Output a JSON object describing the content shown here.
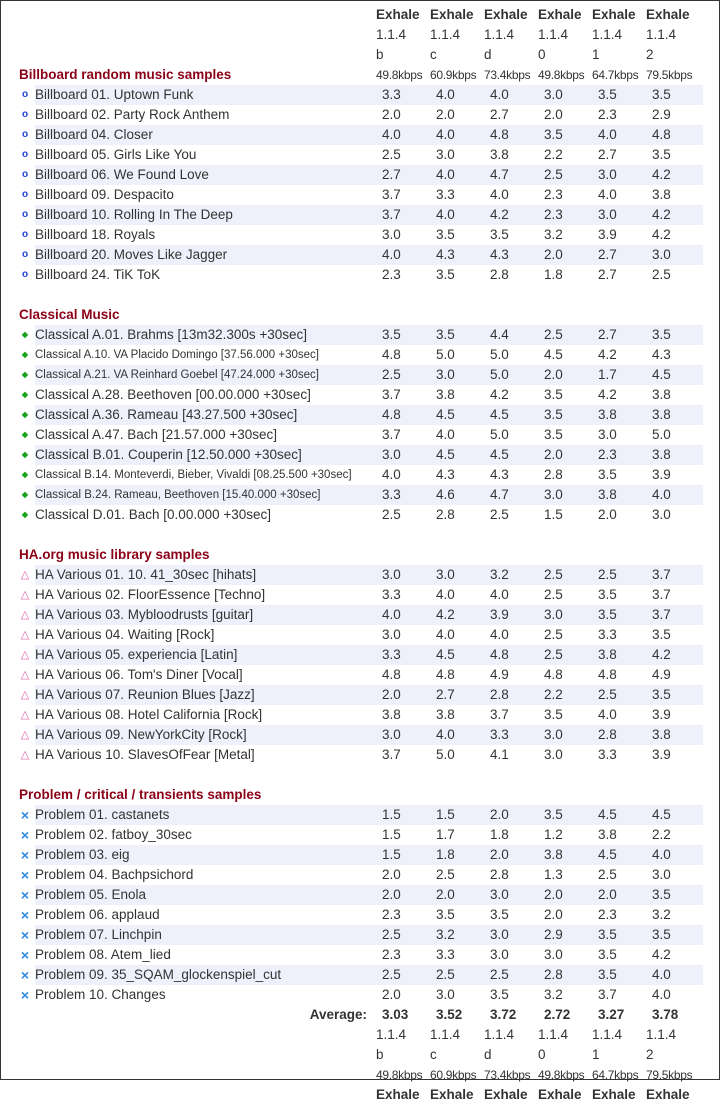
{
  "columns": [
    {
      "codec": "Exhale",
      "version": "1.1.4",
      "preset": "b",
      "bitrate": "49.8kbps"
    },
    {
      "codec": "Exhale",
      "version": "1.1.4",
      "preset": "c",
      "bitrate": "60.9kbps"
    },
    {
      "codec": "Exhale",
      "version": "1.1.4",
      "preset": "d",
      "bitrate": "73.4kbps"
    },
    {
      "codec": "Exhale",
      "version": "1.1.4",
      "preset": "0",
      "bitrate": "49.8kbps"
    },
    {
      "codec": "Exhale",
      "version": "1.1.4",
      "preset": "1",
      "bitrate": "64.7kbps"
    },
    {
      "codec": "Exhale",
      "version": "1.1.4",
      "preset": "2",
      "bitrate": "79.5kbps"
    }
  ],
  "sections": [
    {
      "title": "Billboard random music samples",
      "icon": "circle-icon",
      "glyph": "o",
      "color": "#1a3fd6",
      "rows": [
        {
          "label": "Billboard 01. Uptown Funk",
          "values": [
            "3.3",
            "4.0",
            "4.0",
            "3.0",
            "3.5",
            "3.5"
          ]
        },
        {
          "label": "Billboard 02. Party Rock Anthem",
          "values": [
            "2.0",
            "2.0",
            "2.7",
            "2.0",
            "2.3",
            "2.9"
          ]
        },
        {
          "label": "Billboard 04. Closer",
          "values": [
            "4.0",
            "4.0",
            "4.8",
            "3.5",
            "4.0",
            "4.8"
          ]
        },
        {
          "label": "Billboard 05. Girls Like You",
          "values": [
            "2.5",
            "3.0",
            "3.8",
            "2.2",
            "2.7",
            "3.5"
          ]
        },
        {
          "label": "Billboard 06. We Found Love",
          "values": [
            "2.7",
            "4.0",
            "4.7",
            "2.5",
            "3.0",
            "4.2"
          ]
        },
        {
          "label": "Billboard 09. Despacito",
          "values": [
            "3.7",
            "3.3",
            "4.0",
            "2.3",
            "4.0",
            "3.8"
          ]
        },
        {
          "label": "Billboard 10. Rolling In The Deep",
          "values": [
            "3.7",
            "4.0",
            "4.2",
            "2.3",
            "3.0",
            "4.2"
          ]
        },
        {
          "label": "Billboard 18. Royals",
          "values": [
            "3.0",
            "3.5",
            "3.5",
            "3.2",
            "3.9",
            "4.2"
          ]
        },
        {
          "label": "Billboard 20. Moves Like Jagger",
          "values": [
            "4.0",
            "4.3",
            "4.3",
            "2.0",
            "2.7",
            "3.0"
          ]
        },
        {
          "label": "Billboard 24. TiK ToK",
          "values": [
            "2.3",
            "3.5",
            "2.8",
            "1.8",
            "2.7",
            "2.5"
          ]
        }
      ]
    },
    {
      "title": "Classical Music",
      "icon": "diamond-icon",
      "glyph": "◆",
      "color": "#1aa31a",
      "rows": [
        {
          "label": "Classical A.01. Brahms [13m32.300s +30sec]",
          "values": [
            "3.5",
            "3.5",
            "4.4",
            "2.5",
            "2.7",
            "3.5"
          ]
        },
        {
          "label": "Classical A.10. VA Placido Domingo [37.56.000 +30sec]",
          "values": [
            "4.8",
            "5.0",
            "5.0",
            "4.5",
            "4.2",
            "4.3"
          ]
        },
        {
          "label": "Classical A.21. VA Reinhard Goebel [47.24.000 +30sec]",
          "values": [
            "2.5",
            "3.0",
            "5.0",
            "2.0",
            "1.7",
            "4.5"
          ]
        },
        {
          "label": "Classical A.28. Beethoven [00.00.000 +30sec]",
          "values": [
            "3.7",
            "3.8",
            "4.2",
            "3.5",
            "4.2",
            "3.8"
          ]
        },
        {
          "label": "Classical A.36. Rameau [43.27.500 +30sec]",
          "values": [
            "4.8",
            "4.5",
            "4.5",
            "3.5",
            "3.8",
            "3.8"
          ]
        },
        {
          "label": "Classical A.47. Bach [21.57.000 +30sec]",
          "values": [
            "3.7",
            "4.0",
            "5.0",
            "3.5",
            "3.0",
            "5.0"
          ]
        },
        {
          "label": "Classical B.01. Couperin [12.50.000 +30sec]",
          "values": [
            "3.0",
            "4.5",
            "4.5",
            "2.0",
            "2.3",
            "3.8"
          ]
        },
        {
          "label": "Classical B.14. Monteverdi, Bieber, Vivaldi [08.25.500 +30sec]",
          "values": [
            "4.0",
            "4.3",
            "4.3",
            "2.8",
            "3.5",
            "3.9"
          ]
        },
        {
          "label": "Classical B.24. Rameau, Beethoven [15.40.000 +30sec]",
          "values": [
            "3.3",
            "4.6",
            "4.7",
            "3.0",
            "3.8",
            "4.0"
          ]
        },
        {
          "label": "Classical D.01. Bach [0.00.000 +30sec]",
          "values": [
            "2.5",
            "2.8",
            "2.5",
            "1.5",
            "2.0",
            "3.0"
          ]
        }
      ]
    },
    {
      "title": "HA.org music library samples",
      "icon": "triangle-icon",
      "glyph": "△",
      "color": "#e060b0",
      "rows": [
        {
          "label": "HA Various 01. 10. 41_30sec [hihats]",
          "values": [
            "3.0",
            "3.0",
            "3.2",
            "2.5",
            "2.5",
            "3.7"
          ]
        },
        {
          "label": "HA Various 02. FloorEssence [Techno]",
          "values": [
            "3.3",
            "4.0",
            "4.0",
            "2.5",
            "3.5",
            "3.7"
          ]
        },
        {
          "label": "HA Various 03. Mybloodrusts [guitar]",
          "values": [
            "4.0",
            "4.2",
            "3.9",
            "3.0",
            "3.5",
            "3.7"
          ]
        },
        {
          "label": "HA Various 04. Waiting [Rock]",
          "values": [
            "3.0",
            "4.0",
            "4.0",
            "2.5",
            "3.3",
            "3.5"
          ]
        },
        {
          "label": "HA Various 05. experiencia [Latin]",
          "values": [
            "3.3",
            "4.5",
            "4.8",
            "2.5",
            "3.8",
            "4.2"
          ]
        },
        {
          "label": "HA Various 06. Tom's Diner [Vocal]",
          "values": [
            "4.8",
            "4.8",
            "4.9",
            "4.8",
            "4.8",
            "4.9"
          ]
        },
        {
          "label": "HA Various 07. Reunion Blues [Jazz]",
          "values": [
            "2.0",
            "2.7",
            "2.8",
            "2.2",
            "2.5",
            "3.5"
          ]
        },
        {
          "label": "HA Various 08. Hotel California [Rock]",
          "values": [
            "3.8",
            "3.8",
            "3.7",
            "3.5",
            "4.0",
            "3.9"
          ]
        },
        {
          "label": "HA Various 09. NewYorkCity [Rock]",
          "values": [
            "3.0",
            "4.0",
            "3.3",
            "3.0",
            "2.8",
            "3.8"
          ]
        },
        {
          "label": "HA Various 10. SlavesOfFear [Metal]",
          "values": [
            "3.7",
            "5.0",
            "4.1",
            "3.0",
            "3.3",
            "3.9"
          ]
        }
      ]
    },
    {
      "title": "Problem / critical / transients samples",
      "icon": "cross-icon",
      "glyph": "×",
      "color": "#2a8ae0",
      "rows": [
        {
          "label": "Problem 01. castanets",
          "values": [
            "1.5",
            "1.5",
            "2.0",
            "3.5",
            "4.5",
            "4.5"
          ]
        },
        {
          "label": "Problem 02. fatboy_30sec",
          "values": [
            "1.5",
            "1.7",
            "1.8",
            "1.2",
            "3.8",
            "2.2"
          ]
        },
        {
          "label": "Problem 03. eig",
          "values": [
            "1.5",
            "1.8",
            "2.0",
            "3.8",
            "4.5",
            "4.0"
          ]
        },
        {
          "label": "Problem 04. Bachpsichord",
          "values": [
            "2.0",
            "2.5",
            "2.8",
            "1.3",
            "2.5",
            "3.0"
          ]
        },
        {
          "label": "Problem 05. Enola",
          "values": [
            "2.0",
            "2.0",
            "3.0",
            "2.0",
            "2.0",
            "3.5"
          ]
        },
        {
          "label": "Problem 06. applaud",
          "values": [
            "2.3",
            "3.5",
            "3.5",
            "2.0",
            "2.3",
            "3.2"
          ]
        },
        {
          "label": "Problem 07. Linchpin",
          "values": [
            "2.5",
            "3.2",
            "3.0",
            "2.9",
            "3.5",
            "3.5"
          ]
        },
        {
          "label": "Problem 08. Atem_lied",
          "values": [
            "2.3",
            "3.3",
            "3.0",
            "3.0",
            "3.5",
            "4.2"
          ]
        },
        {
          "label": "Problem 09. 35_SQAM_glockenspiel_cut",
          "values": [
            "2.5",
            "2.5",
            "2.5",
            "2.8",
            "3.5",
            "4.0"
          ]
        },
        {
          "label": "Problem 10. Changes",
          "values": [
            "2.0",
            "3.0",
            "3.5",
            "3.2",
            "3.7",
            "4.0"
          ]
        }
      ]
    }
  ],
  "average": {
    "label": "Average:",
    "values": [
      "3.03",
      "3.52",
      "3.72",
      "2.72",
      "3.27",
      "3.78"
    ]
  },
  "colors": {
    "section_title": "#8b0016",
    "row_alt": "#eef1fb"
  }
}
